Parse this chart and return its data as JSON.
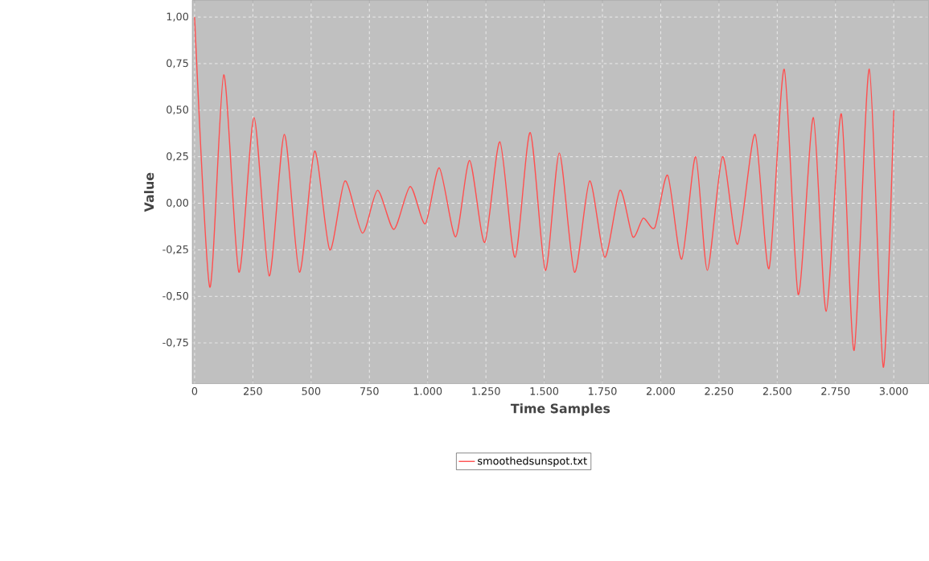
{
  "chart_data": {
    "type": "line",
    "xlabel": "Time Samples",
    "ylabel": "Value",
    "x": [
      0,
      65,
      125,
      190,
      255,
      320,
      385,
      450,
      515,
      580,
      645,
      720,
      785,
      855,
      925,
      990,
      1050,
      1120,
      1180,
      1245,
      1310,
      1375,
      1440,
      1505,
      1565,
      1630,
      1695,
      1760,
      1825,
      1880,
      1925,
      1975,
      2030,
      2090,
      2150,
      2200,
      2265,
      2330,
      2405,
      2465,
      2530,
      2590,
      2655,
      2710,
      2775,
      2830,
      2895,
      2955,
      3000
    ],
    "series": [
      {
        "name": "smoothedsunspot.txt",
        "color": "#ff4f4f",
        "values": [
          1.0,
          -0.45,
          0.69,
          -0.37,
          0.46,
          -0.39,
          0.37,
          -0.37,
          0.28,
          -0.25,
          0.12,
          -0.16,
          0.07,
          -0.14,
          0.09,
          -0.11,
          0.19,
          -0.18,
          0.23,
          -0.21,
          0.33,
          -0.29,
          0.38,
          -0.36,
          0.27,
          -0.37,
          0.12,
          -0.29,
          0.07,
          -0.18,
          -0.08,
          -0.13,
          0.15,
          -0.3,
          0.25,
          -0.36,
          0.25,
          -0.22,
          0.37,
          -0.35,
          0.72,
          -0.49,
          0.46,
          -0.58,
          0.48,
          -0.79,
          0.72,
          -0.88,
          0.5
        ]
      }
    ],
    "xlim": [
      -10,
      3150
    ],
    "ylim": [
      -0.97,
      1.09
    ],
    "xticks": [
      0,
      250,
      500,
      750,
      {
        "value": 1000,
        "label": "1.000"
      },
      {
        "value": 1250,
        "label": "1.250"
      },
      {
        "value": 1500,
        "label": "1.500"
      },
      {
        "value": 1750,
        "label": "1.750"
      },
      {
        "value": 2000,
        "label": "2.000"
      },
      {
        "value": 2250,
        "label": "2.250"
      },
      {
        "value": 2500,
        "label": "2.500"
      },
      {
        "value": 2750,
        "label": "2.750"
      },
      {
        "value": 3000,
        "label": "3.000"
      }
    ],
    "yticks": [
      {
        "value": -0.75,
        "label": "-0,75"
      },
      {
        "value": -0.5,
        "label": "-0,50"
      },
      {
        "value": -0.25,
        "label": "-0,25"
      },
      {
        "value": 0,
        "label": "0,00"
      },
      {
        "value": 0.25,
        "label": "0,25"
      },
      {
        "value": 0.5,
        "label": "0,50"
      },
      {
        "value": 0.75,
        "label": "0,75"
      },
      {
        "value": 1.0,
        "label": "1,00"
      }
    ],
    "grid": true,
    "legend": "bottom",
    "line_style": "solid"
  }
}
